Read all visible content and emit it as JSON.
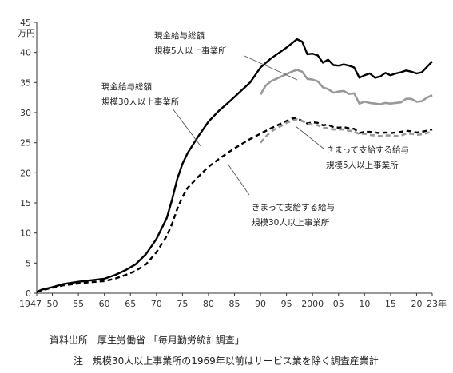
{
  "chart_data": {
    "type": "line",
    "unit_label": "万円",
    "x_suffix": "年",
    "ylim": [
      0,
      45
    ],
    "y_ticks": [
      0,
      5,
      10,
      15,
      20,
      25,
      30,
      35,
      40,
      45
    ],
    "xlim": [
      1947,
      2023
    ],
    "x_ticks": [
      {
        "value": 1947,
        "label": "1947"
      },
      {
        "value": 1950,
        "label": "50"
      },
      {
        "value": 1955,
        "label": "55"
      },
      {
        "value": 1960,
        "label": "60"
      },
      {
        "value": 1965,
        "label": "65"
      },
      {
        "value": 1970,
        "label": "70"
      },
      {
        "value": 1975,
        "label": "75"
      },
      {
        "value": 1980,
        "label": "80"
      },
      {
        "value": 1985,
        "label": "85"
      },
      {
        "value": 1990,
        "label": "90"
      },
      {
        "value": 1995,
        "label": "95"
      },
      {
        "value": 2000,
        "label": "2000"
      },
      {
        "value": 2005,
        "label": "05"
      },
      {
        "value": 2010,
        "label": "10"
      },
      {
        "value": 2015,
        "label": "15"
      },
      {
        "value": 2020,
        "label": "20"
      },
      {
        "value": 2023,
        "label": "23"
      }
    ],
    "grid": false,
    "series": [
      {
        "key": "total30",
        "name": "現金給与総額 規模30人以上事業所",
        "color": "#000000",
        "style": "solid",
        "width": 2.4,
        "x": [
          1947,
          1948,
          1950,
          1952,
          1955,
          1957,
          1960,
          1962,
          1964,
          1966,
          1968,
          1970,
          1972,
          1973,
          1974,
          1975,
          1976,
          1978,
          1980,
          1982,
          1984,
          1986,
          1988,
          1990,
          1992,
          1994,
          1995,
          1996,
          1997,
          1998,
          1999,
          2000,
          2001,
          2002,
          2003,
          2004,
          2005,
          2006,
          2007,
          2008,
          2009,
          2010,
          2011,
          2012,
          2013,
          2014,
          2015,
          2016,
          2017,
          2018,
          2019,
          2020,
          2021,
          2022,
          2023
        ],
        "y": [
          0.2,
          0.6,
          1.0,
          1.5,
          1.9,
          2.1,
          2.4,
          3.0,
          3.8,
          4.8,
          6.5,
          9.0,
          12.5,
          15.5,
          19.0,
          21.5,
          23.3,
          26.0,
          28.5,
          30.3,
          31.8,
          33.4,
          35.0,
          37.5,
          39.0,
          40.2,
          40.8,
          41.5,
          42.2,
          41.8,
          39.7,
          39.8,
          39.5,
          38.3,
          38.8,
          37.9,
          37.8,
          38.0,
          37.8,
          37.5,
          35.8,
          36.2,
          36.5,
          35.8,
          36.0,
          36.6,
          36.2,
          36.5,
          36.7,
          37.0,
          36.8,
          36.5,
          36.7,
          37.6,
          38.5
        ]
      },
      {
        "key": "fixed30",
        "name": "きまって支給する給与 規模30人以上事業所",
        "color": "#000000",
        "style": "dashed",
        "width": 2.4,
        "x": [
          1947,
          1948,
          1950,
          1952,
          1955,
          1957,
          1960,
          1962,
          1964,
          1966,
          1968,
          1970,
          1972,
          1973,
          1974,
          1975,
          1976,
          1978,
          1980,
          1982,
          1984,
          1986,
          1988,
          1990,
          1992,
          1994,
          1995,
          1996,
          1997,
          1998,
          1999,
          2000,
          2001,
          2002,
          2003,
          2004,
          2005,
          2006,
          2007,
          2008,
          2009,
          2010,
          2011,
          2012,
          2013,
          2014,
          2015,
          2016,
          2017,
          2018,
          2019,
          2020,
          2021,
          2022,
          2023
        ],
        "y": [
          0.2,
          0.5,
          0.9,
          1.3,
          1.6,
          1.8,
          2.0,
          2.4,
          3.0,
          3.7,
          4.8,
          6.8,
          9.5,
          11.5,
          14.0,
          16.0,
          17.5,
          19.3,
          21.0,
          22.3,
          23.5,
          24.6,
          25.6,
          26.5,
          27.4,
          28.2,
          28.6,
          29.0,
          29.1,
          28.6,
          28.2,
          28.4,
          28.3,
          27.9,
          28.0,
          27.6,
          27.5,
          27.6,
          27.4,
          27.3,
          26.6,
          26.8,
          26.8,
          26.7,
          26.6,
          26.7,
          26.6,
          26.7,
          26.8,
          27.0,
          26.9,
          26.7,
          26.8,
          27.0,
          27.2
        ]
      },
      {
        "key": "total5",
        "name": "現金給与総額 規模5人以上事業所",
        "color": "#999999",
        "style": "solid",
        "width": 2.6,
        "x": [
          1990,
          1991,
          1992,
          1993,
          1994,
          1995,
          1996,
          1997,
          1998,
          1999,
          2000,
          2001,
          2002,
          2003,
          2004,
          2005,
          2006,
          2007,
          2008,
          2009,
          2010,
          2011,
          2012,
          2013,
          2014,
          2015,
          2016,
          2017,
          2018,
          2019,
          2020,
          2021,
          2022,
          2023
        ],
        "y": [
          33.0,
          34.5,
          35.2,
          35.6,
          36.0,
          36.4,
          36.8,
          37.1,
          36.8,
          35.6,
          35.5,
          35.2,
          34.2,
          33.9,
          33.3,
          33.5,
          33.6,
          33.1,
          33.2,
          31.5,
          31.8,
          31.6,
          31.5,
          31.4,
          31.6,
          31.5,
          31.6,
          31.7,
          32.3,
          32.3,
          31.8,
          31.9,
          32.5,
          32.9
        ]
      },
      {
        "key": "fixed5",
        "name": "きまって支給する給与 規模5人以上事業所",
        "color": "#999999",
        "style": "dashed",
        "width": 2.6,
        "x": [
          1990,
          1991,
          1992,
          1993,
          1994,
          1995,
          1996,
          1997,
          1998,
          1999,
          2000,
          2001,
          2002,
          2003,
          2004,
          2005,
          2006,
          2007,
          2008,
          2009,
          2010,
          2011,
          2012,
          2013,
          2014,
          2015,
          2016,
          2017,
          2018,
          2019,
          2020,
          2021,
          2022,
          2023
        ],
        "y": [
          25.0,
          26.0,
          26.8,
          27.4,
          27.8,
          28.3,
          28.6,
          28.9,
          28.6,
          28.2,
          28.0,
          27.9,
          27.5,
          27.4,
          27.2,
          27.2,
          27.2,
          27.0,
          26.9,
          26.4,
          26.5,
          26.3,
          26.2,
          26.1,
          26.2,
          26.2,
          26.1,
          26.2,
          26.5,
          26.5,
          26.3,
          26.4,
          26.6,
          26.9
        ]
      }
    ],
    "annotations": [
      {
        "key": "ann-total5",
        "lines": [
          "現金給与総額",
          "規模5人以上事業所"
        ],
        "series": "total5"
      },
      {
        "key": "ann-total30",
        "lines": [
          "現金給与総額",
          "規模30人以上事業所"
        ],
        "series": "total30"
      },
      {
        "key": "ann-fixed5",
        "lines": [
          "きまって支給する給与",
          "規模5人以上事業所"
        ],
        "series": "fixed5"
      },
      {
        "key": "ann-fixed30",
        "lines": [
          "きまって支給する給与",
          "規模30人以上事業所"
        ],
        "series": "fixed30"
      }
    ]
  },
  "notes": {
    "source": "資料出所　厚生労働省 「毎月勤労統計調査」",
    "footnote": "注　規模30人以上事業所の1969年以前はサービス業を除く調査産業計"
  }
}
